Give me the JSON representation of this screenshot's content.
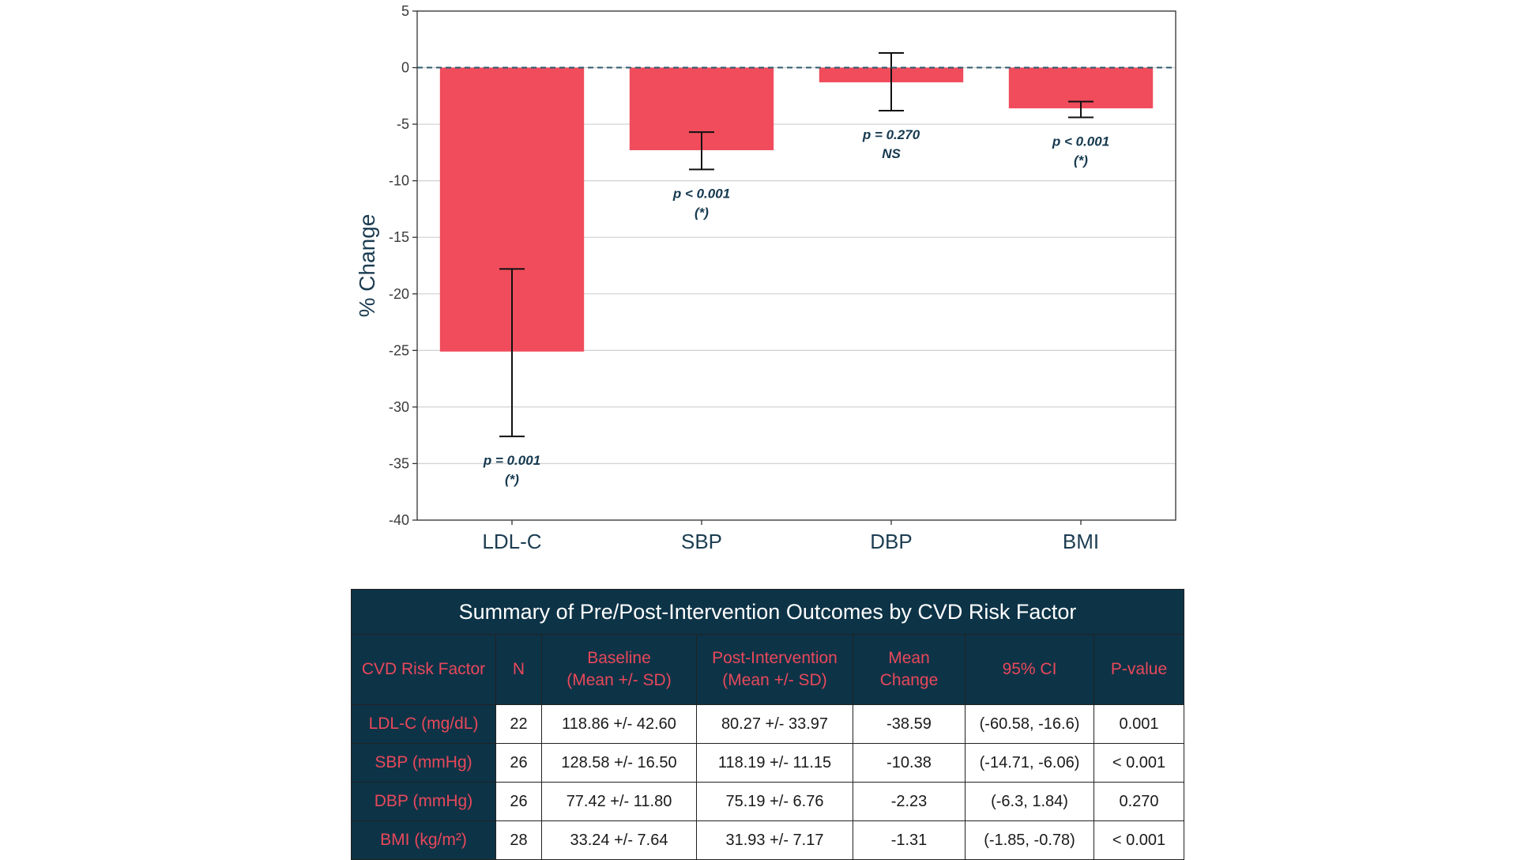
{
  "chart_data": {
    "type": "bar",
    "categories": [
      "LDL-C",
      "SBP",
      "DBP",
      "BMI"
    ],
    "values": [
      -25.1,
      -7.3,
      -1.3,
      -3.6
    ],
    "error_low": [
      -32.6,
      -9.0,
      -3.8,
      -4.4
    ],
    "error_high": [
      -17.8,
      -5.7,
      1.3,
      -3.0
    ],
    "annotations": [
      {
        "line1": "p = 0.001",
        "line2": "(*)"
      },
      {
        "line1": "p < 0.001",
        "line2": "(*)"
      },
      {
        "line1": "p = 0.270",
        "line2": "NS"
      },
      {
        "line1": "p < 0.001",
        "line2": "(*)"
      }
    ],
    "ylabel": "% Change",
    "xlabel": "",
    "ylim": [
      -40,
      5
    ],
    "yticks": [
      5,
      0,
      -5,
      -10,
      -15,
      -20,
      -25,
      -30,
      -35,
      -40
    ],
    "reference_line": 0,
    "grid": true,
    "bar_color": "#f04c5c"
  },
  "table": {
    "title": "Summary of Pre/Post-Intervention Outcomes by CVD Risk Factor",
    "headers": {
      "factor": "CVD Risk Factor",
      "n": "N",
      "baseline_1": "Baseline",
      "baseline_2": "(Mean +/- SD)",
      "post_1": "Post-Intervention",
      "post_2": "(Mean +/- SD)",
      "mean_1": "Mean",
      "mean_2": "Change",
      "ci": "95% CI",
      "p": "P-value"
    },
    "rows": [
      {
        "factor": "LDL-C (mg/dL)",
        "n": "22",
        "baseline": "118.86 +/- 42.60",
        "post": "80.27 +/- 33.97",
        "change": "-38.59",
        "ci": "(-60.58, -16.6)",
        "p": "0.001"
      },
      {
        "factor": "SBP (mmHg)",
        "n": "26",
        "baseline": "128.58 +/- 16.50",
        "post": "118.19 +/- 11.15",
        "change": "-10.38",
        "ci": "(-14.71, -6.06)",
        "p": "< 0.001"
      },
      {
        "factor": "DBP (mmHg)",
        "n": "26",
        "baseline": "77.42 +/- 11.80",
        "post": "75.19 +/- 6.76",
        "change": "-2.23",
        "ci": "(-6.3, 1.84)",
        "p": "0.270"
      },
      {
        "factor": "BMI (kg/m²)",
        "n": "28",
        "baseline": "33.24 +/- 7.64",
        "post": "31.93 +/- 7.17",
        "change": "-1.31",
        "ci": "(-1.85, -0.78)",
        "p": "< 0.001"
      }
    ]
  },
  "colors": {
    "bar": "#f04c5c",
    "navy": "#0d3347",
    "header_text": "#e8485a",
    "reference_line": "#2e5a6e"
  }
}
